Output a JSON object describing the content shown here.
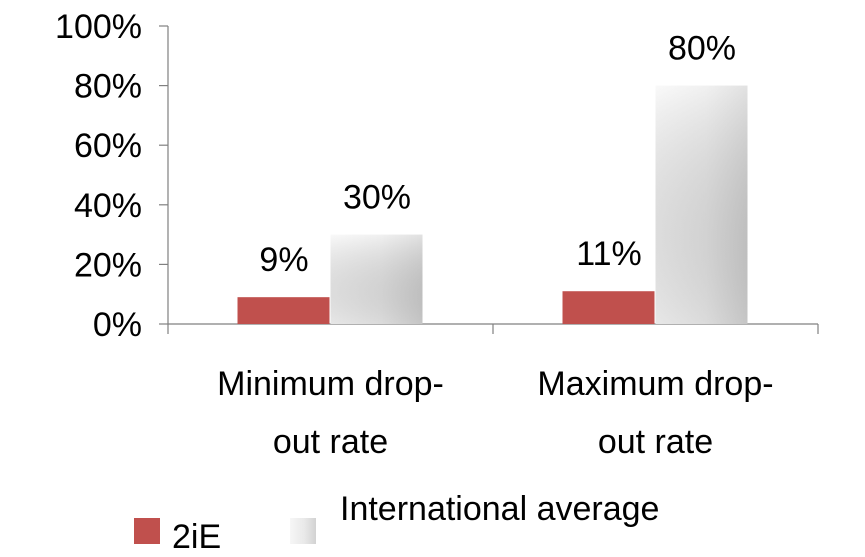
{
  "chart_data": {
    "type": "bar",
    "categories": [
      "Minimum drop-out rate",
      "Maximum drop-out rate"
    ],
    "category_label_lines": [
      [
        "Minimum drop-",
        "out rate"
      ],
      [
        "Maximum drop-",
        "out rate"
      ]
    ],
    "series": [
      {
        "name": "2iE",
        "values": [
          9,
          11
        ],
        "labels": [
          "9%",
          "11%"
        ],
        "color": "#c0504d"
      },
      {
        "name": "International average",
        "values": [
          30,
          80
        ],
        "labels": [
          "30%",
          "80%"
        ],
        "color": "#e6e6e6"
      }
    ],
    "ylim": [
      0,
      100
    ],
    "yticks": [
      0,
      20,
      40,
      60,
      80,
      100
    ],
    "ytick_labels": [
      "0%",
      "20%",
      "40%",
      "60%",
      "80%",
      "100%"
    ],
    "grid": false,
    "legend_position": "bottom"
  }
}
